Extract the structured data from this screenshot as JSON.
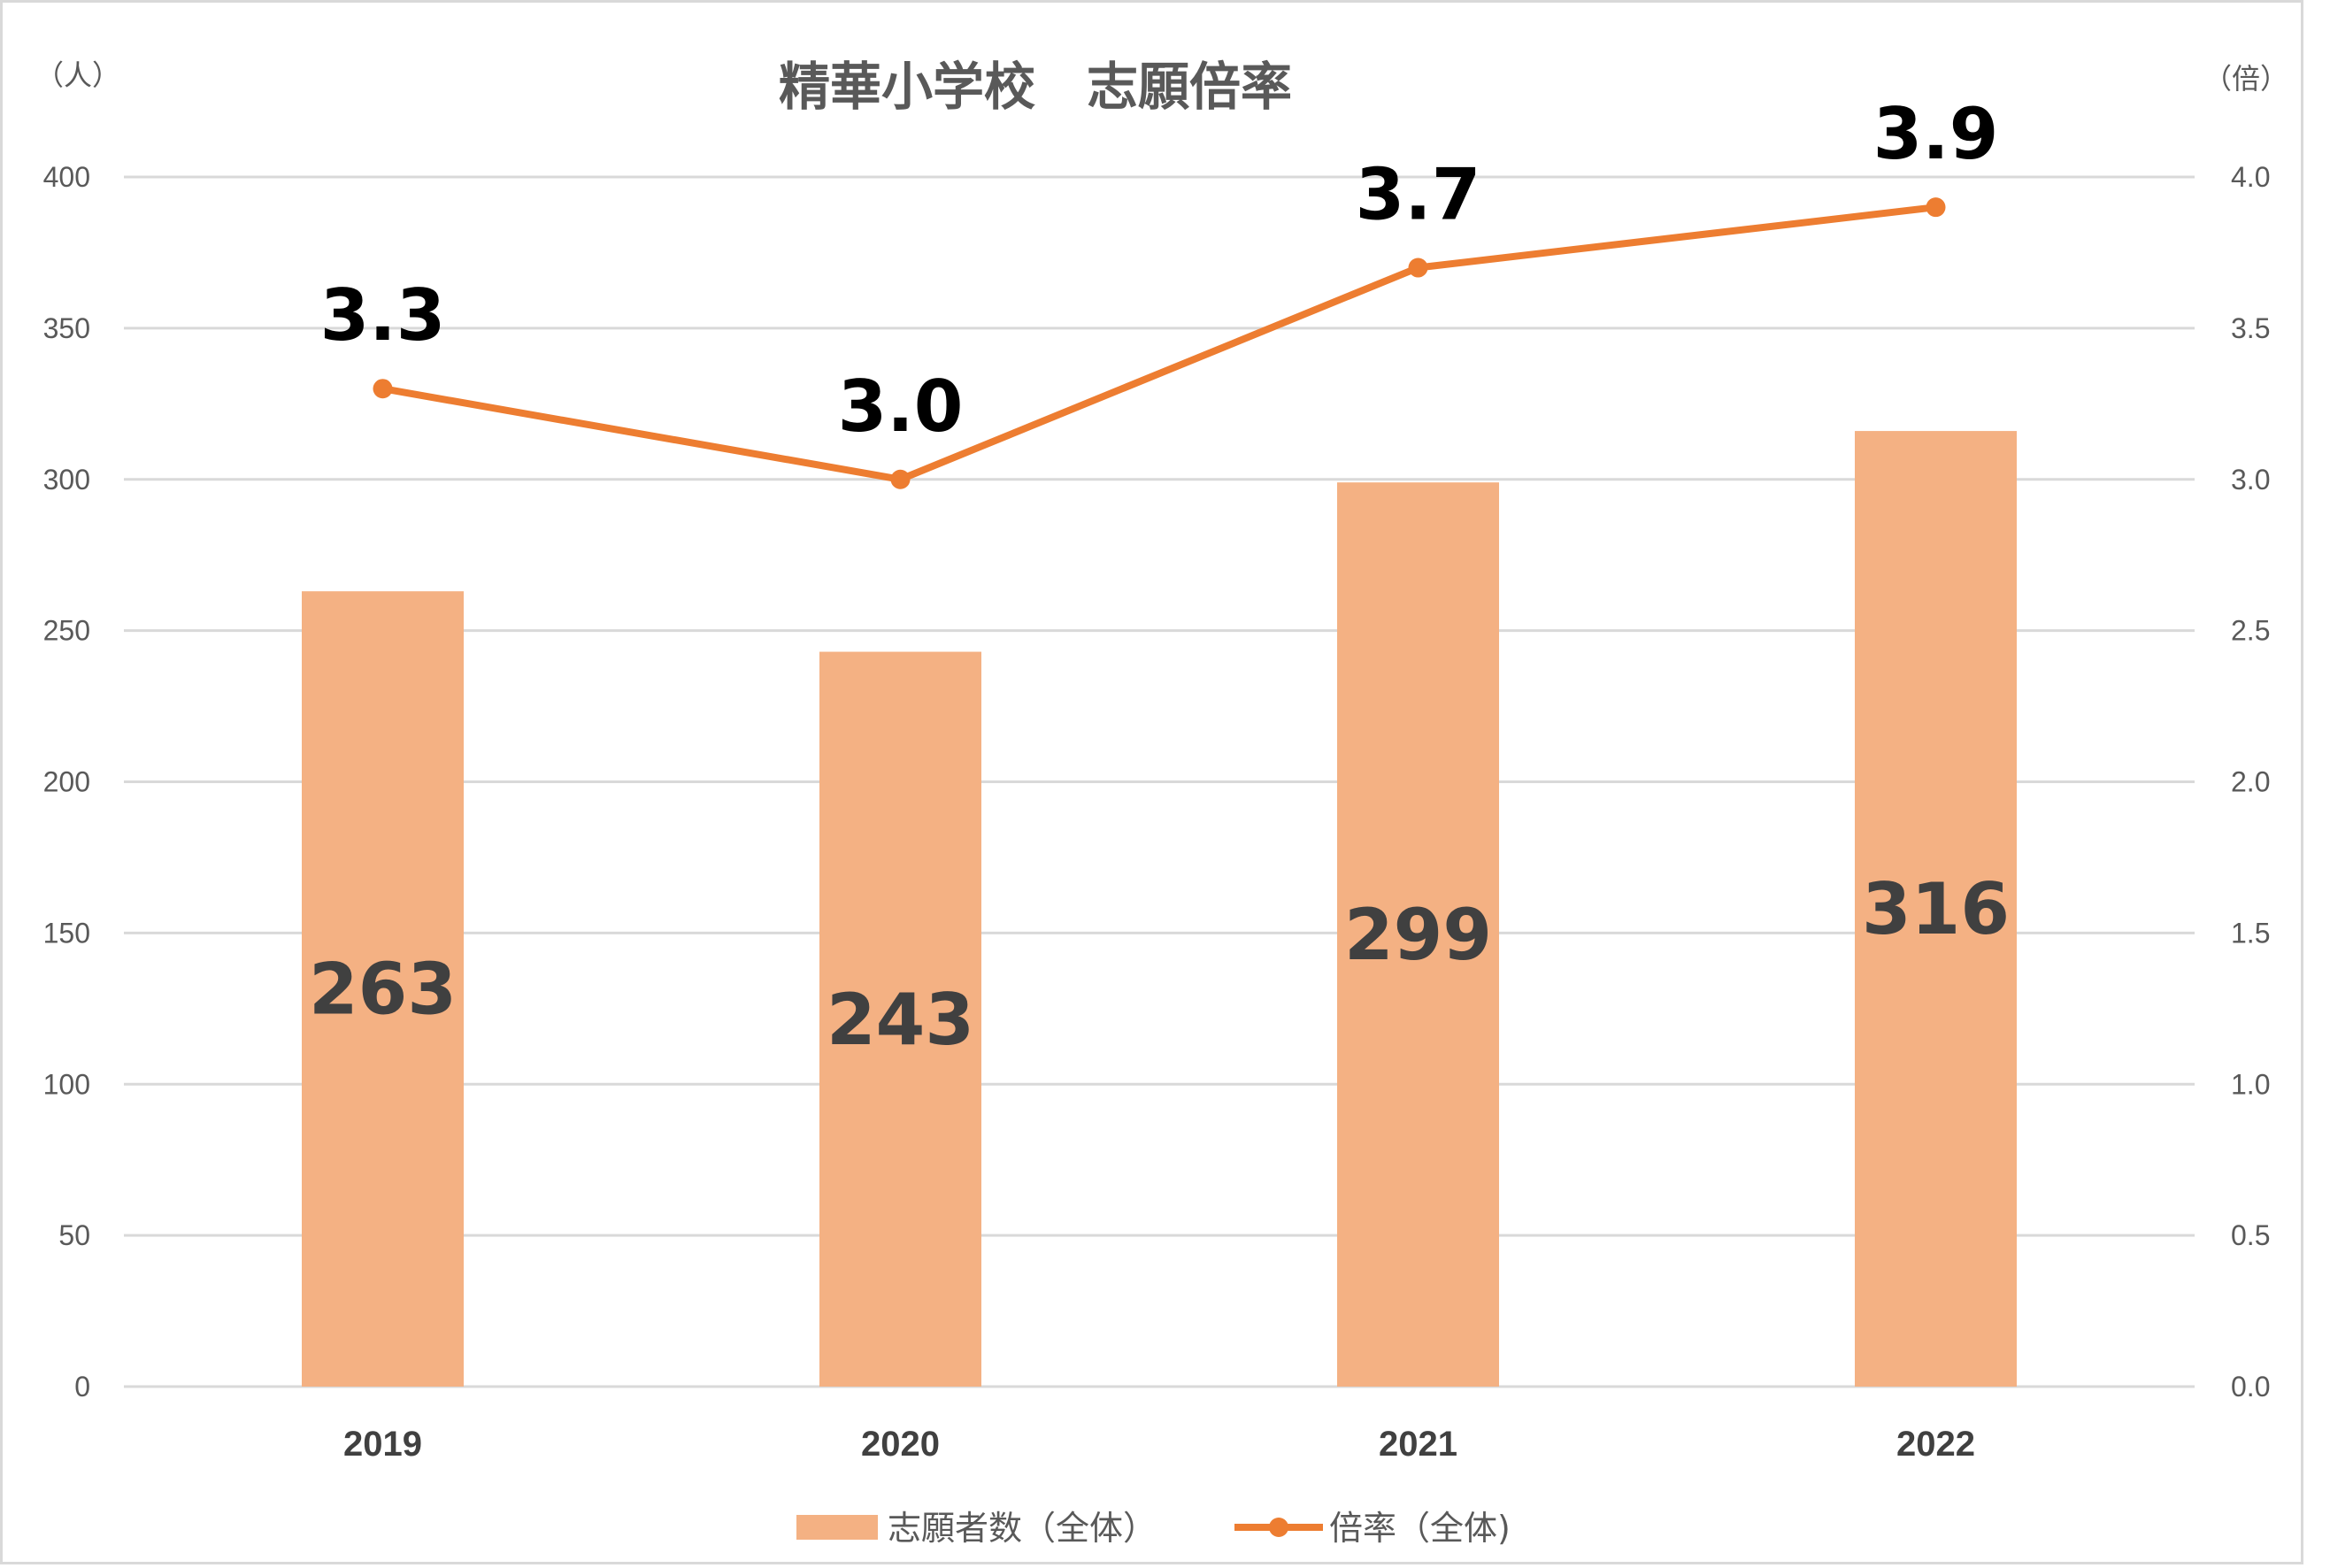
{
  "chart_data": {
    "type": "bar",
    "title": "精華小学校　志願倍率",
    "y_left_unit": "（人）",
    "y_right_unit": "（倍）",
    "categories": [
      "2019",
      "2020",
      "2021",
      "2022"
    ],
    "ylim_left": [
      0,
      400
    ],
    "ylim_right": [
      0,
      4.0
    ],
    "y_left_ticks": [
      "0",
      "50",
      "100",
      "150",
      "200",
      "250",
      "300",
      "350",
      "400"
    ],
    "y_right_ticks": [
      "0.0",
      "0.5",
      "1.0",
      "1.5",
      "2.0",
      "2.5",
      "3.0",
      "3.5",
      "4.0"
    ],
    "grid": true,
    "legend_position": "bottom",
    "series": [
      {
        "name": "志願者数（全体）",
        "type": "bar",
        "axis": "left",
        "color": "#F4B183",
        "values": [
          263,
          243,
          299,
          316
        ],
        "labels": [
          "263",
          "243",
          "299",
          "316"
        ]
      },
      {
        "name": "倍率（全体)",
        "type": "line",
        "axis": "right",
        "color": "#ED7D31",
        "values": [
          3.3,
          3.0,
          3.7,
          3.9
        ],
        "labels": [
          "3.3",
          "3.0",
          "3.7",
          "3.9"
        ]
      }
    ]
  }
}
